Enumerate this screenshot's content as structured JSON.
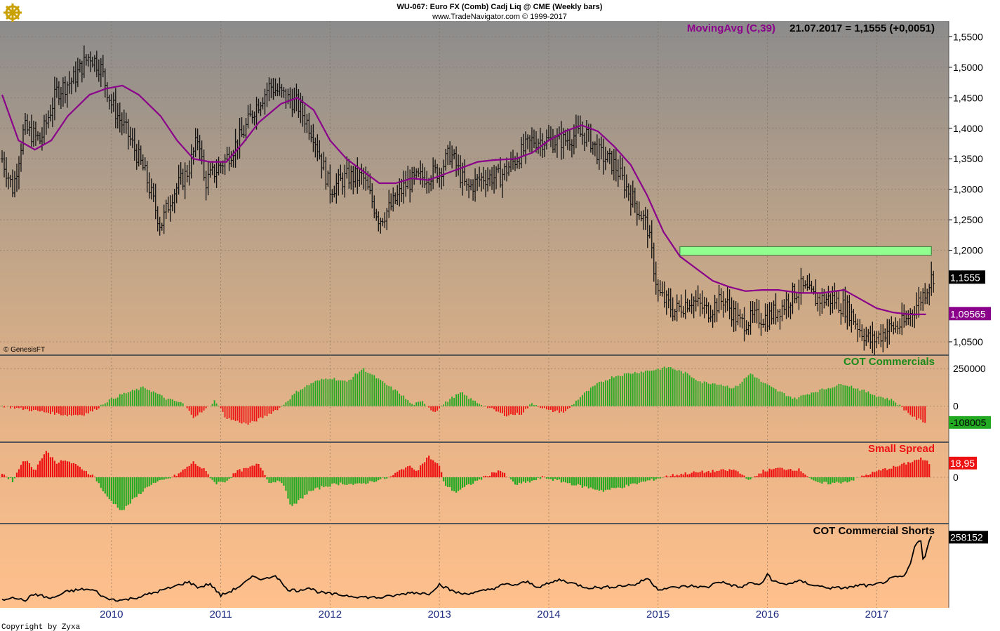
{
  "header": {
    "line1": "WU-067:  Euro FX (Comb) Cadj Liq @ CME  (Weekly bars)",
    "line2": "www.TradeNavigator.com © 1999-2017",
    "ma_label": "MovingAvg (C,39)",
    "date_value": "21.07.2017 = 1,1555 (+0,0051)"
  },
  "logo": {
    "icon": "ship-wheel-icon"
  },
  "credits": {
    "genesis": "© GenesisFT",
    "copyright": "Copyright by Zyxa"
  },
  "colors": {
    "ma_line": "#8a008a",
    "up_bars": "#22aa22",
    "down_bars": "#ee1111",
    "highlight_band": "#90ff90",
    "price_bars": "#111111"
  },
  "chart_data": [
    {
      "type": "candlestick",
      "title": "Euro FX (Comb) Cadj Liq @ CME (Weekly bars)",
      "yticks": [
        "1,5500",
        "1,5000",
        "1,4500",
        "1,4000",
        "1,3500",
        "1,3000",
        "1,2500",
        "1,2000",
        "1,1555",
        "1,0500"
      ],
      "ylim": [
        1.035,
        1.57
      ],
      "x_labels": [
        "2010",
        "2011",
        "2012",
        "2013",
        "2014",
        "2015",
        "2016",
        "2017"
      ],
      "last_close": "1,1555",
      "ma_last": "1,09565",
      "ma_label": "MovingAvg (C,39)",
      "price_path": [
        [
          2009.0,
          1.35
        ],
        [
          2009.1,
          1.3
        ],
        [
          2009.2,
          1.4
        ],
        [
          2009.35,
          1.38
        ],
        [
          2009.5,
          1.46
        ],
        [
          2009.65,
          1.48
        ],
        [
          2009.8,
          1.52
        ],
        [
          2009.9,
          1.5
        ],
        [
          2010.0,
          1.44
        ],
        [
          2010.15,
          1.39
        ],
        [
          2010.3,
          1.33
        ],
        [
          2010.45,
          1.24
        ],
        [
          2010.55,
          1.29
        ],
        [
          2010.7,
          1.33
        ],
        [
          2010.8,
          1.39
        ],
        [
          2010.85,
          1.31
        ],
        [
          2010.95,
          1.33
        ],
        [
          2011.05,
          1.35
        ],
        [
          2011.2,
          1.39
        ],
        [
          2011.3,
          1.43
        ],
        [
          2011.45,
          1.47
        ],
        [
          2011.6,
          1.45
        ],
        [
          2011.7,
          1.44
        ],
        [
          2011.85,
          1.39
        ],
        [
          2012.0,
          1.3
        ],
        [
          2012.15,
          1.32
        ],
        [
          2012.3,
          1.32
        ],
        [
          2012.45,
          1.25
        ],
        [
          2012.55,
          1.27
        ],
        [
          2012.7,
          1.31
        ],
        [
          2012.85,
          1.32
        ],
        [
          2013.0,
          1.33
        ],
        [
          2013.1,
          1.36
        ],
        [
          2013.25,
          1.3
        ],
        [
          2013.4,
          1.32
        ],
        [
          2013.55,
          1.32
        ],
        [
          2013.7,
          1.35
        ],
        [
          2013.85,
          1.38
        ],
        [
          2014.0,
          1.38
        ],
        [
          2014.15,
          1.38
        ],
        [
          2014.25,
          1.39
        ],
        [
          2014.35,
          1.39
        ],
        [
          2014.45,
          1.36
        ],
        [
          2014.6,
          1.34
        ],
        [
          2014.75,
          1.29
        ],
        [
          2014.9,
          1.24
        ],
        [
          2015.0,
          1.13
        ],
        [
          2015.15,
          1.1
        ],
        [
          2015.3,
          1.12
        ],
        [
          2015.45,
          1.1
        ],
        [
          2015.6,
          1.12
        ],
        [
          2015.75,
          1.08
        ],
        [
          2015.9,
          1.09
        ],
        [
          2016.0,
          1.09
        ],
        [
          2016.15,
          1.11
        ],
        [
          2016.3,
          1.14
        ],
        [
          2016.45,
          1.12
        ],
        [
          2016.6,
          1.12
        ],
        [
          2016.75,
          1.1
        ],
        [
          2016.85,
          1.07
        ],
        [
          2016.95,
          1.05
        ],
        [
          2017.1,
          1.07
        ],
        [
          2017.25,
          1.08
        ],
        [
          2017.4,
          1.12
        ],
        [
          2017.52,
          1.16
        ]
      ],
      "ma_path": [
        [
          2009.0,
          1.455
        ],
        [
          2009.15,
          1.38
        ],
        [
          2009.3,
          1.365
        ],
        [
          2009.45,
          1.38
        ],
        [
          2009.6,
          1.42
        ],
        [
          2009.8,
          1.455
        ],
        [
          2009.95,
          1.465
        ],
        [
          2010.1,
          1.47
        ],
        [
          2010.25,
          1.455
        ],
        [
          2010.45,
          1.42
        ],
        [
          2010.6,
          1.38
        ],
        [
          2010.75,
          1.35
        ],
        [
          2010.9,
          1.345
        ],
        [
          2011.05,
          1.345
        ],
        [
          2011.2,
          1.375
        ],
        [
          2011.35,
          1.41
        ],
        [
          2011.55,
          1.44
        ],
        [
          2011.7,
          1.45
        ],
        [
          2011.85,
          1.43
        ],
        [
          2012.0,
          1.38
        ],
        [
          2012.15,
          1.35
        ],
        [
          2012.3,
          1.33
        ],
        [
          2012.45,
          1.31
        ],
        [
          2012.6,
          1.31
        ],
        [
          2012.75,
          1.318
        ],
        [
          2012.9,
          1.315
        ],
        [
          2013.05,
          1.325
        ],
        [
          2013.2,
          1.335
        ],
        [
          2013.35,
          1.345
        ],
        [
          2013.5,
          1.348
        ],
        [
          2013.7,
          1.35
        ],
        [
          2013.85,
          1.36
        ],
        [
          2014.0,
          1.38
        ],
        [
          2014.15,
          1.395
        ],
        [
          2014.3,
          1.405
        ],
        [
          2014.45,
          1.395
        ],
        [
          2014.6,
          1.37
        ],
        [
          2014.75,
          1.34
        ],
        [
          2014.9,
          1.29
        ],
        [
          2015.05,
          1.23
        ],
        [
          2015.2,
          1.19
        ],
        [
          2015.35,
          1.17
        ],
        [
          2015.5,
          1.15
        ],
        [
          2015.65,
          1.14
        ],
        [
          2015.8,
          1.133
        ],
        [
          2015.95,
          1.135
        ],
        [
          2016.1,
          1.135
        ],
        [
          2016.3,
          1.13
        ],
        [
          2016.5,
          1.13
        ],
        [
          2016.7,
          1.135
        ],
        [
          2016.85,
          1.12
        ],
        [
          2017.0,
          1.105
        ],
        [
          2017.15,
          1.098
        ],
        [
          2017.3,
          1.095
        ],
        [
          2017.45,
          1.095
        ]
      ],
      "band": {
        "x0": 2015.2,
        "x1": 2017.5,
        "y0": 1.192,
        "y1": 1.206
      }
    },
    {
      "type": "bar",
      "title": "COT Commercials",
      "yticks": [
        "250000",
        "0"
      ],
      "ylim": [
        -230000,
        330000
      ],
      "last_value": "-108005",
      "points": [
        [
          2009.0,
          2000
        ],
        [
          2009.2,
          -20000
        ],
        [
          2009.4,
          -40000
        ],
        [
          2009.6,
          -60000
        ],
        [
          2009.75,
          -55000
        ],
        [
          2009.85,
          -25000
        ],
        [
          2009.95,
          30000
        ],
        [
          2010.1,
          80000
        ],
        [
          2010.3,
          125000
        ],
        [
          2010.4,
          90000
        ],
        [
          2010.5,
          50000
        ],
        [
          2010.65,
          20000
        ],
        [
          2010.75,
          -70000
        ],
        [
          2010.85,
          -30000
        ],
        [
          2010.95,
          40000
        ],
        [
          2011.05,
          -80000
        ],
        [
          2011.25,
          -120000
        ],
        [
          2011.4,
          -70000
        ],
        [
          2011.55,
          -5000
        ],
        [
          2011.7,
          100000
        ],
        [
          2011.85,
          160000
        ],
        [
          2012.0,
          190000
        ],
        [
          2012.15,
          160000
        ],
        [
          2012.3,
          250000
        ],
        [
          2012.4,
          200000
        ],
        [
          2012.5,
          150000
        ],
        [
          2012.65,
          80000
        ],
        [
          2012.75,
          10000
        ],
        [
          2012.85,
          30000
        ],
        [
          2012.95,
          -40000
        ],
        [
          2013.1,
          50000
        ],
        [
          2013.2,
          90000
        ],
        [
          2013.3,
          40000
        ],
        [
          2013.45,
          -10000
        ],
        [
          2013.6,
          -60000
        ],
        [
          2013.75,
          -50000
        ],
        [
          2013.85,
          20000
        ],
        [
          2014.0,
          -30000
        ],
        [
          2014.15,
          -40000
        ],
        [
          2014.3,
          70000
        ],
        [
          2014.45,
          150000
        ],
        [
          2014.6,
          200000
        ],
        [
          2014.75,
          220000
        ],
        [
          2014.95,
          240000
        ],
        [
          2015.1,
          260000
        ],
        [
          2015.25,
          220000
        ],
        [
          2015.4,
          160000
        ],
        [
          2015.55,
          150000
        ],
        [
          2015.7,
          120000
        ],
        [
          2015.85,
          220000
        ],
        [
          2015.95,
          160000
        ],
        [
          2016.1,
          100000
        ],
        [
          2016.25,
          50000
        ],
        [
          2016.4,
          90000
        ],
        [
          2016.55,
          120000
        ],
        [
          2016.7,
          150000
        ],
        [
          2016.85,
          110000
        ],
        [
          2017.0,
          70000
        ],
        [
          2017.15,
          40000
        ],
        [
          2017.25,
          -20000
        ],
        [
          2017.35,
          -80000
        ],
        [
          2017.45,
          -108005
        ]
      ]
    },
    {
      "type": "bar",
      "title": "Small Spread",
      "yticks": [
        "0"
      ],
      "ylim": [
        -60,
        45
      ],
      "last_value": "18,95",
      "points": [
        [
          2009.0,
          5
        ],
        [
          2009.1,
          -5
        ],
        [
          2009.2,
          25
        ],
        [
          2009.3,
          10
        ],
        [
          2009.4,
          35
        ],
        [
          2009.5,
          20
        ],
        [
          2009.6,
          22
        ],
        [
          2009.75,
          10
        ],
        [
          2009.85,
          0
        ],
        [
          2009.95,
          -25
        ],
        [
          2010.1,
          -45
        ],
        [
          2010.2,
          -30
        ],
        [
          2010.35,
          -10
        ],
        [
          2010.5,
          -3
        ],
        [
          2010.6,
          3
        ],
        [
          2010.75,
          20
        ],
        [
          2010.85,
          10
        ],
        [
          2010.95,
          -8
        ],
        [
          2011.05,
          -5
        ],
        [
          2011.15,
          8
        ],
        [
          2011.25,
          12
        ],
        [
          2011.35,
          18
        ],
        [
          2011.45,
          -8
        ],
        [
          2011.55,
          -3
        ],
        [
          2011.65,
          -40
        ],
        [
          2011.8,
          -20
        ],
        [
          2011.95,
          -12
        ],
        [
          2012.1,
          -8
        ],
        [
          2012.25,
          -10
        ],
        [
          2012.4,
          -5
        ],
        [
          2012.55,
          0
        ],
        [
          2012.7,
          15
        ],
        [
          2012.8,
          10
        ],
        [
          2012.9,
          28
        ],
        [
          2013.0,
          15
        ],
        [
          2013.05,
          -10
        ],
        [
          2013.15,
          -20
        ],
        [
          2013.3,
          -8
        ],
        [
          2013.45,
          3
        ],
        [
          2013.55,
          10
        ],
        [
          2013.7,
          -10
        ],
        [
          2013.85,
          -5
        ],
        [
          2013.95,
          0
        ],
        [
          2014.1,
          -5
        ],
        [
          2014.3,
          -12
        ],
        [
          2014.5,
          -18
        ],
        [
          2014.7,
          -12
        ],
        [
          2014.9,
          -5
        ],
        [
          2015.1,
          2
        ],
        [
          2015.3,
          6
        ],
        [
          2015.5,
          8
        ],
        [
          2015.7,
          10
        ],
        [
          2015.85,
          -4
        ],
        [
          2015.95,
          8
        ],
        [
          2016.1,
          12
        ],
        [
          2016.3,
          10
        ],
        [
          2016.45,
          -8
        ],
        [
          2016.6,
          -8
        ],
        [
          2016.75,
          -5
        ],
        [
          2016.9,
          3
        ],
        [
          2017.05,
          10
        ],
        [
          2017.2,
          15
        ],
        [
          2017.3,
          20
        ],
        [
          2017.4,
          25
        ],
        [
          2017.48,
          18.95
        ]
      ]
    },
    {
      "type": "line",
      "title": "COT Commercial Shorts",
      "last_value": "258152",
      "ylim": [
        45000,
        270000
      ],
      "points": [
        [
          2009.0,
          60000
        ],
        [
          2009.1,
          72000
        ],
        [
          2009.2,
          58000
        ],
        [
          2009.3,
          80000
        ],
        [
          2009.45,
          65000
        ],
        [
          2009.6,
          88000
        ],
        [
          2009.75,
          95000
        ],
        [
          2009.85,
          90000
        ],
        [
          2009.95,
          65000
        ],
        [
          2010.1,
          60000
        ],
        [
          2010.25,
          70000
        ],
        [
          2010.4,
          85000
        ],
        [
          2010.55,
          100000
        ],
        [
          2010.7,
          118000
        ],
        [
          2010.8,
          100000
        ],
        [
          2010.9,
          112000
        ],
        [
          2011.0,
          75000
        ],
        [
          2011.1,
          90000
        ],
        [
          2011.2,
          110000
        ],
        [
          2011.3,
          135000
        ],
        [
          2011.4,
          125000
        ],
        [
          2011.5,
          140000
        ],
        [
          2011.6,
          95000
        ],
        [
          2011.7,
          90000
        ],
        [
          2011.8,
          100000
        ],
        [
          2011.9,
          85000
        ],
        [
          2012.0,
          80000
        ],
        [
          2012.15,
          75000
        ],
        [
          2012.3,
          70000
        ],
        [
          2012.45,
          68000
        ],
        [
          2012.6,
          75000
        ],
        [
          2012.75,
          85000
        ],
        [
          2012.9,
          80000
        ],
        [
          2013.0,
          110000
        ],
        [
          2013.1,
          92000
        ],
        [
          2013.2,
          80000
        ],
        [
          2013.35,
          85000
        ],
        [
          2013.5,
          98000
        ],
        [
          2013.6,
          110000
        ],
        [
          2013.7,
          108000
        ],
        [
          2013.8,
          118000
        ],
        [
          2013.9,
          102000
        ],
        [
          2014.0,
          112000
        ],
        [
          2014.1,
          125000
        ],
        [
          2014.2,
          115000
        ],
        [
          2014.35,
          100000
        ],
        [
          2014.5,
          100000
        ],
        [
          2014.65,
          105000
        ],
        [
          2014.8,
          110000
        ],
        [
          2014.9,
          130000
        ],
        [
          2015.0,
          95000
        ],
        [
          2015.15,
          100000
        ],
        [
          2015.3,
          105000
        ],
        [
          2015.45,
          100000
        ],
        [
          2015.55,
          120000
        ],
        [
          2015.65,
          110000
        ],
        [
          2015.75,
          100000
        ],
        [
          2015.85,
          115000
        ],
        [
          2015.95,
          108000
        ],
        [
          2016.0,
          145000
        ],
        [
          2016.05,
          120000
        ],
        [
          2016.15,
          110000
        ],
        [
          2016.3,
          120000
        ],
        [
          2016.45,
          105000
        ],
        [
          2016.6,
          98000
        ],
        [
          2016.75,
          100000
        ],
        [
          2016.85,
          108000
        ],
        [
          2016.95,
          105000
        ],
        [
          2017.05,
          115000
        ],
        [
          2017.15,
          130000
        ],
        [
          2017.25,
          135000
        ],
        [
          2017.3,
          165000
        ],
        [
          2017.35,
          230000
        ],
        [
          2017.4,
          258000
        ],
        [
          2017.43,
          175000
        ],
        [
          2017.47,
          240000
        ],
        [
          2017.5,
          258152
        ]
      ]
    }
  ]
}
